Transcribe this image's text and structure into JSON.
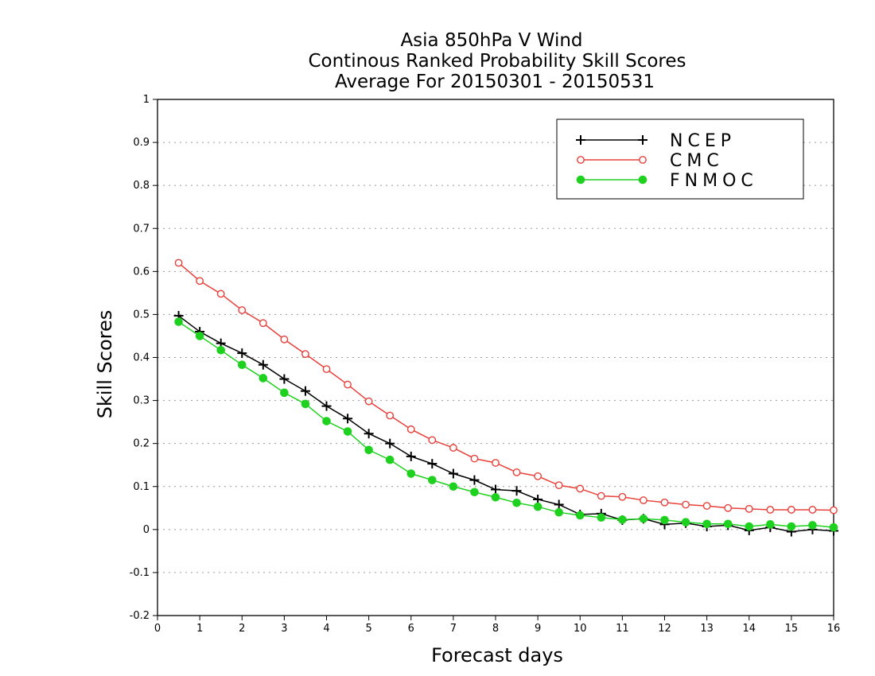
{
  "chart_data": {
    "type": "line",
    "title": [
      "Asia 850hPa V Wind",
      "Continous Ranked Probability Skill Scores",
      "Average For 20150301 - 20150531"
    ],
    "xlabel": "Forecast days",
    "ylabel": "Skill Scores",
    "xlim": [
      0,
      16
    ],
    "ylim": [
      -0.2,
      1
    ],
    "xticks": [
      0,
      1,
      2,
      3,
      4,
      5,
      6,
      7,
      8,
      9,
      10,
      11,
      12,
      13,
      14,
      15,
      16
    ],
    "yticks": [
      -0.2,
      -0.1,
      0,
      0.1,
      0.2,
      0.3,
      0.4,
      0.5,
      0.6,
      0.7,
      0.8,
      0.9,
      1
    ],
    "grid": "horizontal dotted",
    "legend_position": "top-right",
    "x": [
      0.5,
      1,
      1.5,
      2,
      2.5,
      3,
      3.5,
      4,
      4.5,
      5,
      5.5,
      6,
      6.5,
      7,
      7.5,
      8,
      8.5,
      9,
      9.5,
      10,
      10.5,
      11,
      11.5,
      12,
      12.5,
      13,
      13.5,
      14,
      14.5,
      15,
      15.5,
      16
    ],
    "series": [
      {
        "name": "NCEP",
        "color": "#000000",
        "marker": "plus",
        "values": [
          0.497,
          0.46,
          0.433,
          0.41,
          0.383,
          0.35,
          0.322,
          0.287,
          0.258,
          0.223,
          0.2,
          0.17,
          0.153,
          0.13,
          0.115,
          0.093,
          0.09,
          0.07,
          0.058,
          0.035,
          0.037,
          0.022,
          0.025,
          0.012,
          0.015,
          0.007,
          0.01,
          -0.002,
          0.005,
          -0.005,
          0.0,
          -0.003
        ]
      },
      {
        "name": "CMC",
        "color": "#e8403a",
        "marker": "open-circle",
        "values": [
          0.62,
          0.578,
          0.548,
          0.51,
          0.48,
          0.442,
          0.408,
          0.373,
          0.337,
          0.298,
          0.265,
          0.233,
          0.208,
          0.19,
          0.165,
          0.155,
          0.133,
          0.124,
          0.103,
          0.095,
          0.078,
          0.076,
          0.068,
          0.063,
          0.058,
          0.055,
          0.05,
          0.048,
          0.046,
          0.046,
          0.046,
          0.045
        ]
      },
      {
        "name": "FNMOC",
        "color": "#1fd11f",
        "marker": "filled-circle",
        "values": [
          0.483,
          0.45,
          0.417,
          0.383,
          0.352,
          0.318,
          0.292,
          0.252,
          0.228,
          0.185,
          0.162,
          0.13,
          0.115,
          0.1,
          0.087,
          0.075,
          0.062,
          0.053,
          0.04,
          0.033,
          0.028,
          0.023,
          0.025,
          0.022,
          0.017,
          0.013,
          0.013,
          0.007,
          0.012,
          0.007,
          0.01,
          0.005
        ]
      }
    ]
  }
}
